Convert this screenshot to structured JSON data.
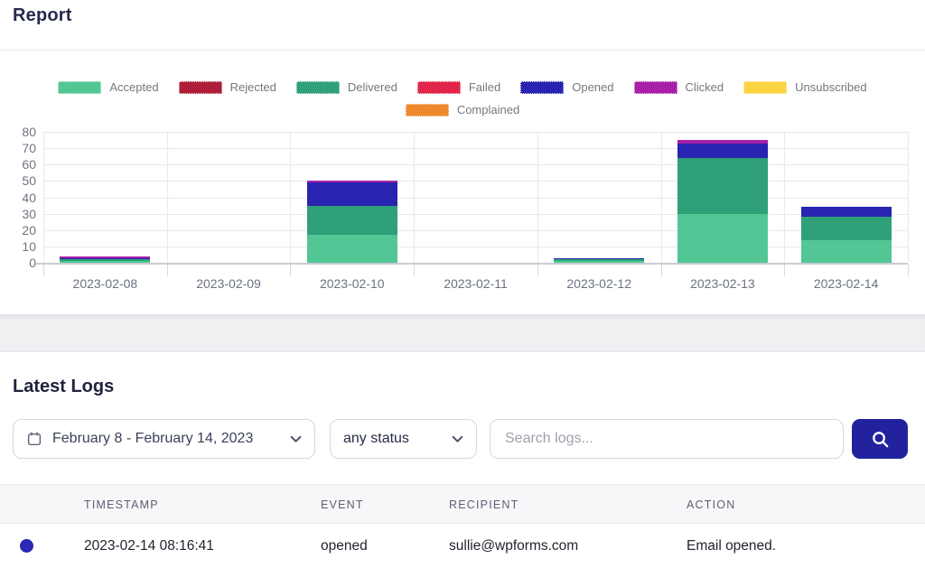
{
  "report": {
    "title": "Report"
  },
  "chart_data": {
    "type": "bar",
    "stacked": true,
    "title": "",
    "xlabel": "",
    "ylabel": "",
    "categories": [
      "2023-02-08",
      "2023-02-09",
      "2023-02-10",
      "2023-02-11",
      "2023-02-12",
      "2023-02-13",
      "2023-02-14"
    ],
    "series": [
      {
        "name": "Accepted",
        "color": "#52c795",
        "values": [
          1,
          0,
          17,
          0,
          1,
          30,
          14
        ]
      },
      {
        "name": "Rejected",
        "color": "#ae1e39",
        "values": [
          0,
          0,
          0,
          0,
          0,
          0,
          0
        ]
      },
      {
        "name": "Delivered",
        "color": "#2fa077",
        "values": [
          1,
          0,
          18,
          0,
          1,
          34,
          14
        ]
      },
      {
        "name": "Failed",
        "color": "#e2254b",
        "values": [
          0,
          0,
          0,
          0,
          0,
          0,
          0
        ]
      },
      {
        "name": "Opened",
        "color": "#2823b0",
        "values": [
          1,
          0,
          14,
          0,
          1,
          9,
          6
        ]
      },
      {
        "name": "Clicked",
        "color": "#a820a8",
        "values": [
          1,
          0,
          1,
          0,
          0,
          2,
          0
        ]
      },
      {
        "name": "Unsubscribed",
        "color": "#fbd441",
        "values": [
          0,
          0,
          0,
          0,
          0,
          0,
          0
        ]
      },
      {
        "name": "Complained",
        "color": "#ef8a2c",
        "values": [
          0,
          0,
          0,
          0,
          0,
          0,
          0
        ]
      }
    ],
    "ylim": [
      0,
      80
    ],
    "ytick_step": 10,
    "grid": true,
    "legend_position": "top",
    "legend_rows": [
      7,
      1
    ]
  },
  "logs": {
    "title": "Latest Logs",
    "date_range": "February 8 - February 14, 2023",
    "status_filter": "any status",
    "search_placeholder": "Search logs...",
    "table": {
      "headers": [
        "TIMESTAMP",
        "EVENT",
        "RECIPIENT",
        "ACTION"
      ],
      "rows": [
        {
          "timestamp": "2023-02-14 08:16:41",
          "event": "opened",
          "recipient": "sullie@wpforms.com",
          "action": "Email opened."
        }
      ]
    }
  },
  "colors": {
    "accent": "#23229e",
    "status_dot": "#2b28b4",
    "grid_line": "#e8e9ee",
    "axis_line": "#c9cbd3"
  }
}
